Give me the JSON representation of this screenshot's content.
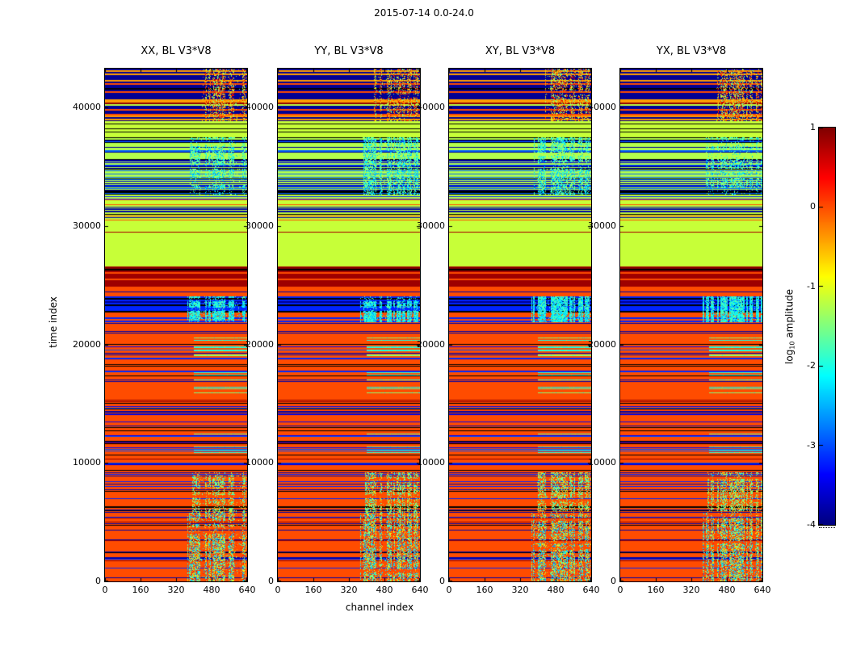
{
  "figure": {
    "title": "2015-07-14 0.0-24.0",
    "xlabel": "channel index",
    "ylabel": "time index"
  },
  "panels": [
    {
      "title": "XX, BL V3*V8"
    },
    {
      "title": "YY, BL V3*V8"
    },
    {
      "title": "XY, BL V3*V8"
    },
    {
      "title": "YX, BL V3*V8"
    }
  ],
  "colorbar": {
    "ticks": [
      1,
      0,
      -1,
      -2,
      -3,
      -4
    ],
    "label_prefix": "log",
    "label_sub": "10",
    "label_suffix": " amplitude",
    "colormap": "jet",
    "range": [
      -4,
      1
    ]
  },
  "chart_data": {
    "type": "heatmap",
    "title": "2015-07-14 0.0-24.0",
    "xlabel": "channel index",
    "ylabel": "time index",
    "value_label": "log10 amplitude",
    "panels": [
      "XX, BL V3*V8",
      "YY, BL V3*V8",
      "XY, BL V3*V8",
      "YX, BL V3*V8"
    ],
    "xlim": [
      0,
      640
    ],
    "ylim": [
      0,
      43300
    ],
    "clim": [
      -4,
      1
    ],
    "colormap": "jet",
    "xticks": [
      0,
      160,
      320,
      480,
      640
    ],
    "yticks": [
      0,
      10000,
      20000,
      30000,
      40000
    ],
    "flagged_color": "#000000",
    "bands": [
      {
        "t_range": [
          0,
          5800
        ],
        "base": 0.0,
        "stripes": {
          "values": [
            -3.8,
            -3.2,
            null,
            0.9
          ],
          "density": 0.22,
          "px": 1
        },
        "speckle": {
          "mode": "pixel",
          "channels": [
            370,
            640
          ],
          "density": 0.6,
          "values": [
            -2.2,
            -1.6,
            -1.0,
            -0.4,
            0.3,
            -2.6
          ]
        }
      },
      {
        "t_range": [
          5800,
          9200
        ],
        "base": 0.0,
        "stripes": {
          "values": [
            -3.8,
            -3.2,
            null
          ],
          "density": 0.28,
          "px": 1
        },
        "speckle": {
          "mode": "pixel",
          "channels": [
            390,
            640
          ],
          "density": 0.4,
          "values": [
            -1.6,
            -1.3,
            -2.0,
            -0.6
          ]
        }
      },
      {
        "t_range": [
          9200,
          20800
        ],
        "base": 0.0,
        "stripes": {
          "values": [
            -3.8,
            -3.4,
            null,
            -3.0,
            0.9
          ],
          "density": 0.26,
          "px": 1
        },
        "speckle": {
          "mode": "row",
          "channels": [
            400,
            640
          ],
          "density": 0.12,
          "values": [
            -1.4,
            -1.7,
            -2.0
          ]
        }
      },
      {
        "t_range": [
          20800,
          21900
        ],
        "base": 0.0,
        "stripes": {
          "values": [
            -3.8,
            null
          ],
          "density": 0.3,
          "px": 1
        }
      },
      {
        "t_range": [
          21900,
          24100
        ],
        "base": -3.2,
        "stripes": {
          "values": [
            -3.9,
            null,
            0.0,
            -2.8
          ],
          "density": 0.35,
          "px": 2
        },
        "speckle": {
          "mode": "pixel",
          "channels": [
            370,
            640
          ],
          "density": 0.7,
          "values": [
            -2.2,
            -2.0,
            -1.6,
            -2.5
          ]
        }
      },
      {
        "t_range": [
          24100,
          24900
        ],
        "base": 0.0,
        "stripes": {
          "values": [
            -3.8
          ],
          "density": 0.25,
          "px": 1
        }
      },
      {
        "t_range": [
          24900,
          26600
        ],
        "base": 0.85,
        "stripes": {
          "values": [
            0.3,
            1.0,
            null,
            0.0
          ],
          "density": 0.35,
          "px": 2
        }
      },
      {
        "t_range": [
          26600,
          30500
        ],
        "base": -1.15,
        "stripes": {
          "values": [],
          "density": 0,
          "px": 1
        },
        "lines": [
          {
            "t": 29500,
            "value": 0.8
          }
        ]
      },
      {
        "t_range": [
          30500,
          32600
        ],
        "base": -1.15,
        "stripes": {
          "values": [
            -3.8,
            null,
            0.0,
            -3.2
          ],
          "density": 0.4,
          "px": 1
        }
      },
      {
        "t_range": [
          32600,
          37500
        ],
        "base": -1.25,
        "stripes": {
          "values": [
            -3.6,
            -3.9,
            null,
            -2.9
          ],
          "density": 0.5,
          "px": 1
        },
        "speckle": {
          "mode": "pixel",
          "channels": [
            380,
            640
          ],
          "density": 0.45,
          "values": [
            -2.1,
            -1.7,
            -2.4,
            -1.4
          ]
        }
      },
      {
        "t_range": [
          37500,
          38900
        ],
        "base": -1.15,
        "stripes": {
          "values": [
            null
          ],
          "density": 0.12,
          "px": 1
        }
      },
      {
        "t_range": [
          38900,
          43300
        ],
        "base": -3.9,
        "stripes": {
          "values": [
            0.0,
            0.0,
            -0.4,
            0.9,
            -1.2,
            null
          ],
          "density": 0.55,
          "px": 2
        },
        "speckle": {
          "mode": "pixel",
          "channels": [
            430,
            640
          ],
          "density": 0.4,
          "values": [
            0.0,
            -0.6,
            -1.1,
            0.5,
            -1.6
          ]
        }
      }
    ]
  }
}
